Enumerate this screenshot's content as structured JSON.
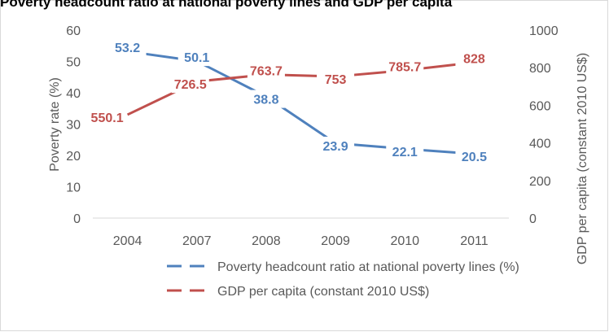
{
  "colors": {
    "poverty": "#4f81bd",
    "gdp": "#c0504d",
    "axis_text": "#595959",
    "grid": "#d9d9d9"
  },
  "chart_data": {
    "type": "line",
    "title": "Poverty headcount ratio at national poverty lines   and GDP  per capita",
    "categories": [
      "2004",
      "2007",
      "2008",
      "2009",
      "2010",
      "2011"
    ],
    "ylabel_left": "Poverty rate (%)",
    "ylabel_right": "GDP per capita (constant 2010 US$)",
    "ylim_left": [
      0,
      60
    ],
    "yticks_left": [
      0,
      10,
      20,
      30,
      40,
      50,
      60
    ],
    "ylim_right": [
      0,
      1000
    ],
    "yticks_right": [
      0,
      200,
      400,
      600,
      800,
      1000
    ],
    "grid": false,
    "legend_position": "bottom",
    "series": [
      {
        "name": "Poverty  headcount ratio at national poverty lines (%)",
        "axis": "left",
        "color": "#4f81bd",
        "values": [
          53.2,
          50.1,
          38.8,
          23.9,
          22.1,
          20.5
        ],
        "labels": [
          "53.2",
          "50.1",
          "38.8",
          "23.9",
          "22.1",
          "20.5"
        ]
      },
      {
        "name": "GDP per capita (constant 2010 US$)",
        "axis": "right",
        "color": "#c0504d",
        "values": [
          550.1,
          726.5,
          763.7,
          753,
          785.7,
          828
        ],
        "labels": [
          "550.1",
          "726.5",
          "763.7",
          "753",
          "785.7",
          "828"
        ]
      }
    ]
  }
}
